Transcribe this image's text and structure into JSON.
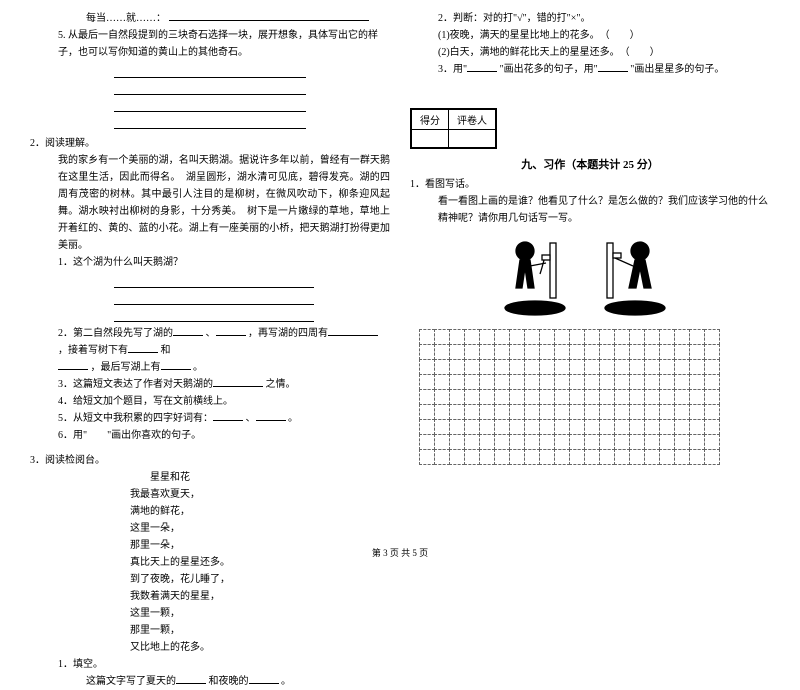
{
  "leftCol": {
    "q4_line": "每当……就……：",
    "q5_text": "5. 从最后一自然段提到的三块奇石选择一块，展开想象，具体写出它的样子，也可以写你知道的黄山上的其他奇石。",
    "r2_head": "2．阅读理解。",
    "r2_para": "我的家乡有一个美丽的湖，名叫天鹅湖。据说许多年以前，曾经有一群天鹅在这里生活，因此而得名。　湖呈圆形，湖水清可见底，碧得发亮。湖的四周有茂密的树林。其中最引人注目的是柳树，在微风吹动下，柳条迎风起舞。湖水映衬出柳树的身影，十分秀美。　树下是一片嫩绿的草地，草地上开着红的、黄的、蓝的小花。湖上有一座美丽的小桥，把天鹅湖打扮得更加美丽。",
    "r2_q1": "1．这个湖为什么叫天鹅湖？",
    "r2_q2a": "2．第二自然段先写了湖的",
    "r2_q2b": "、",
    "r2_q2c": "，再写湖的四周有",
    "r2_q2d": "，接着写树下有",
    "r2_q2e": "和",
    "r2_q2f": "，最后写湖上有",
    "r2_q2g": "。",
    "r2_q3a": "3．这篇短文表达了作者对天鹅湖的",
    "r2_q3b": "之情。",
    "r2_q4": "4．给短文加个题目，写在文前横线上。",
    "r2_q5": "5．从短文中我积累的四字好词有：",
    "r2_q5b": "、",
    "r2_q5c": "。",
    "r2_q6": "6．用\"　　\"画出你喜欢的句子。",
    "r3_head": "3．阅读检阅台。",
    "poem_title": "星星和花",
    "poem_l1": "我最喜欢夏天，",
    "poem_l2": "满地的鲜花，",
    "poem_l3": "这里一朵，",
    "poem_l4": "那里一朵，",
    "poem_l5": "真比天上的星星还多。",
    "poem_l6": "到了夜晚，花儿睡了，",
    "poem_l7": "我数着满天的星星，",
    "poem_l8": "这里一颗，",
    "poem_l9": "那里一颗，",
    "poem_l10": "又比地上的花多。",
    "r3_q1_head": "1．填空。",
    "r3_q1a": "这篇文字写了夏天的",
    "r3_q1b": "和夜晚的",
    "r3_q1c": "。"
  },
  "rightCol": {
    "j2_head": "2．判断：对的打\"√\"，错的打\"×\"。",
    "j2_1": "(1)夜晚，满天的星星比地上的花多。　（　　）",
    "j2_2": "(2)白天，满地的鲜花比天上的星星还多。　（　　）",
    "j3a": "3．用\"",
    "j3b": "\"画出花多的句子，用\"",
    "j3c": "\"画出星星多的句子。",
    "score_l": "得分",
    "score_r": "评卷人",
    "section9": "九、习作（本题共计 25 分）",
    "w1_head": "1．看图写话。",
    "w1_text": "看一看图上画的是谁？他看见了什么？是怎么做的？我们应该学习他的什么精神呢？请你用几句话写一写。"
  },
  "pagenum": "第 3 页 共 5 页",
  "grid": {
    "rows": 9,
    "cols": 20
  },
  "colors": {
    "text": "#000000",
    "bg": "#ffffff",
    "gridBorder": "#666666"
  }
}
